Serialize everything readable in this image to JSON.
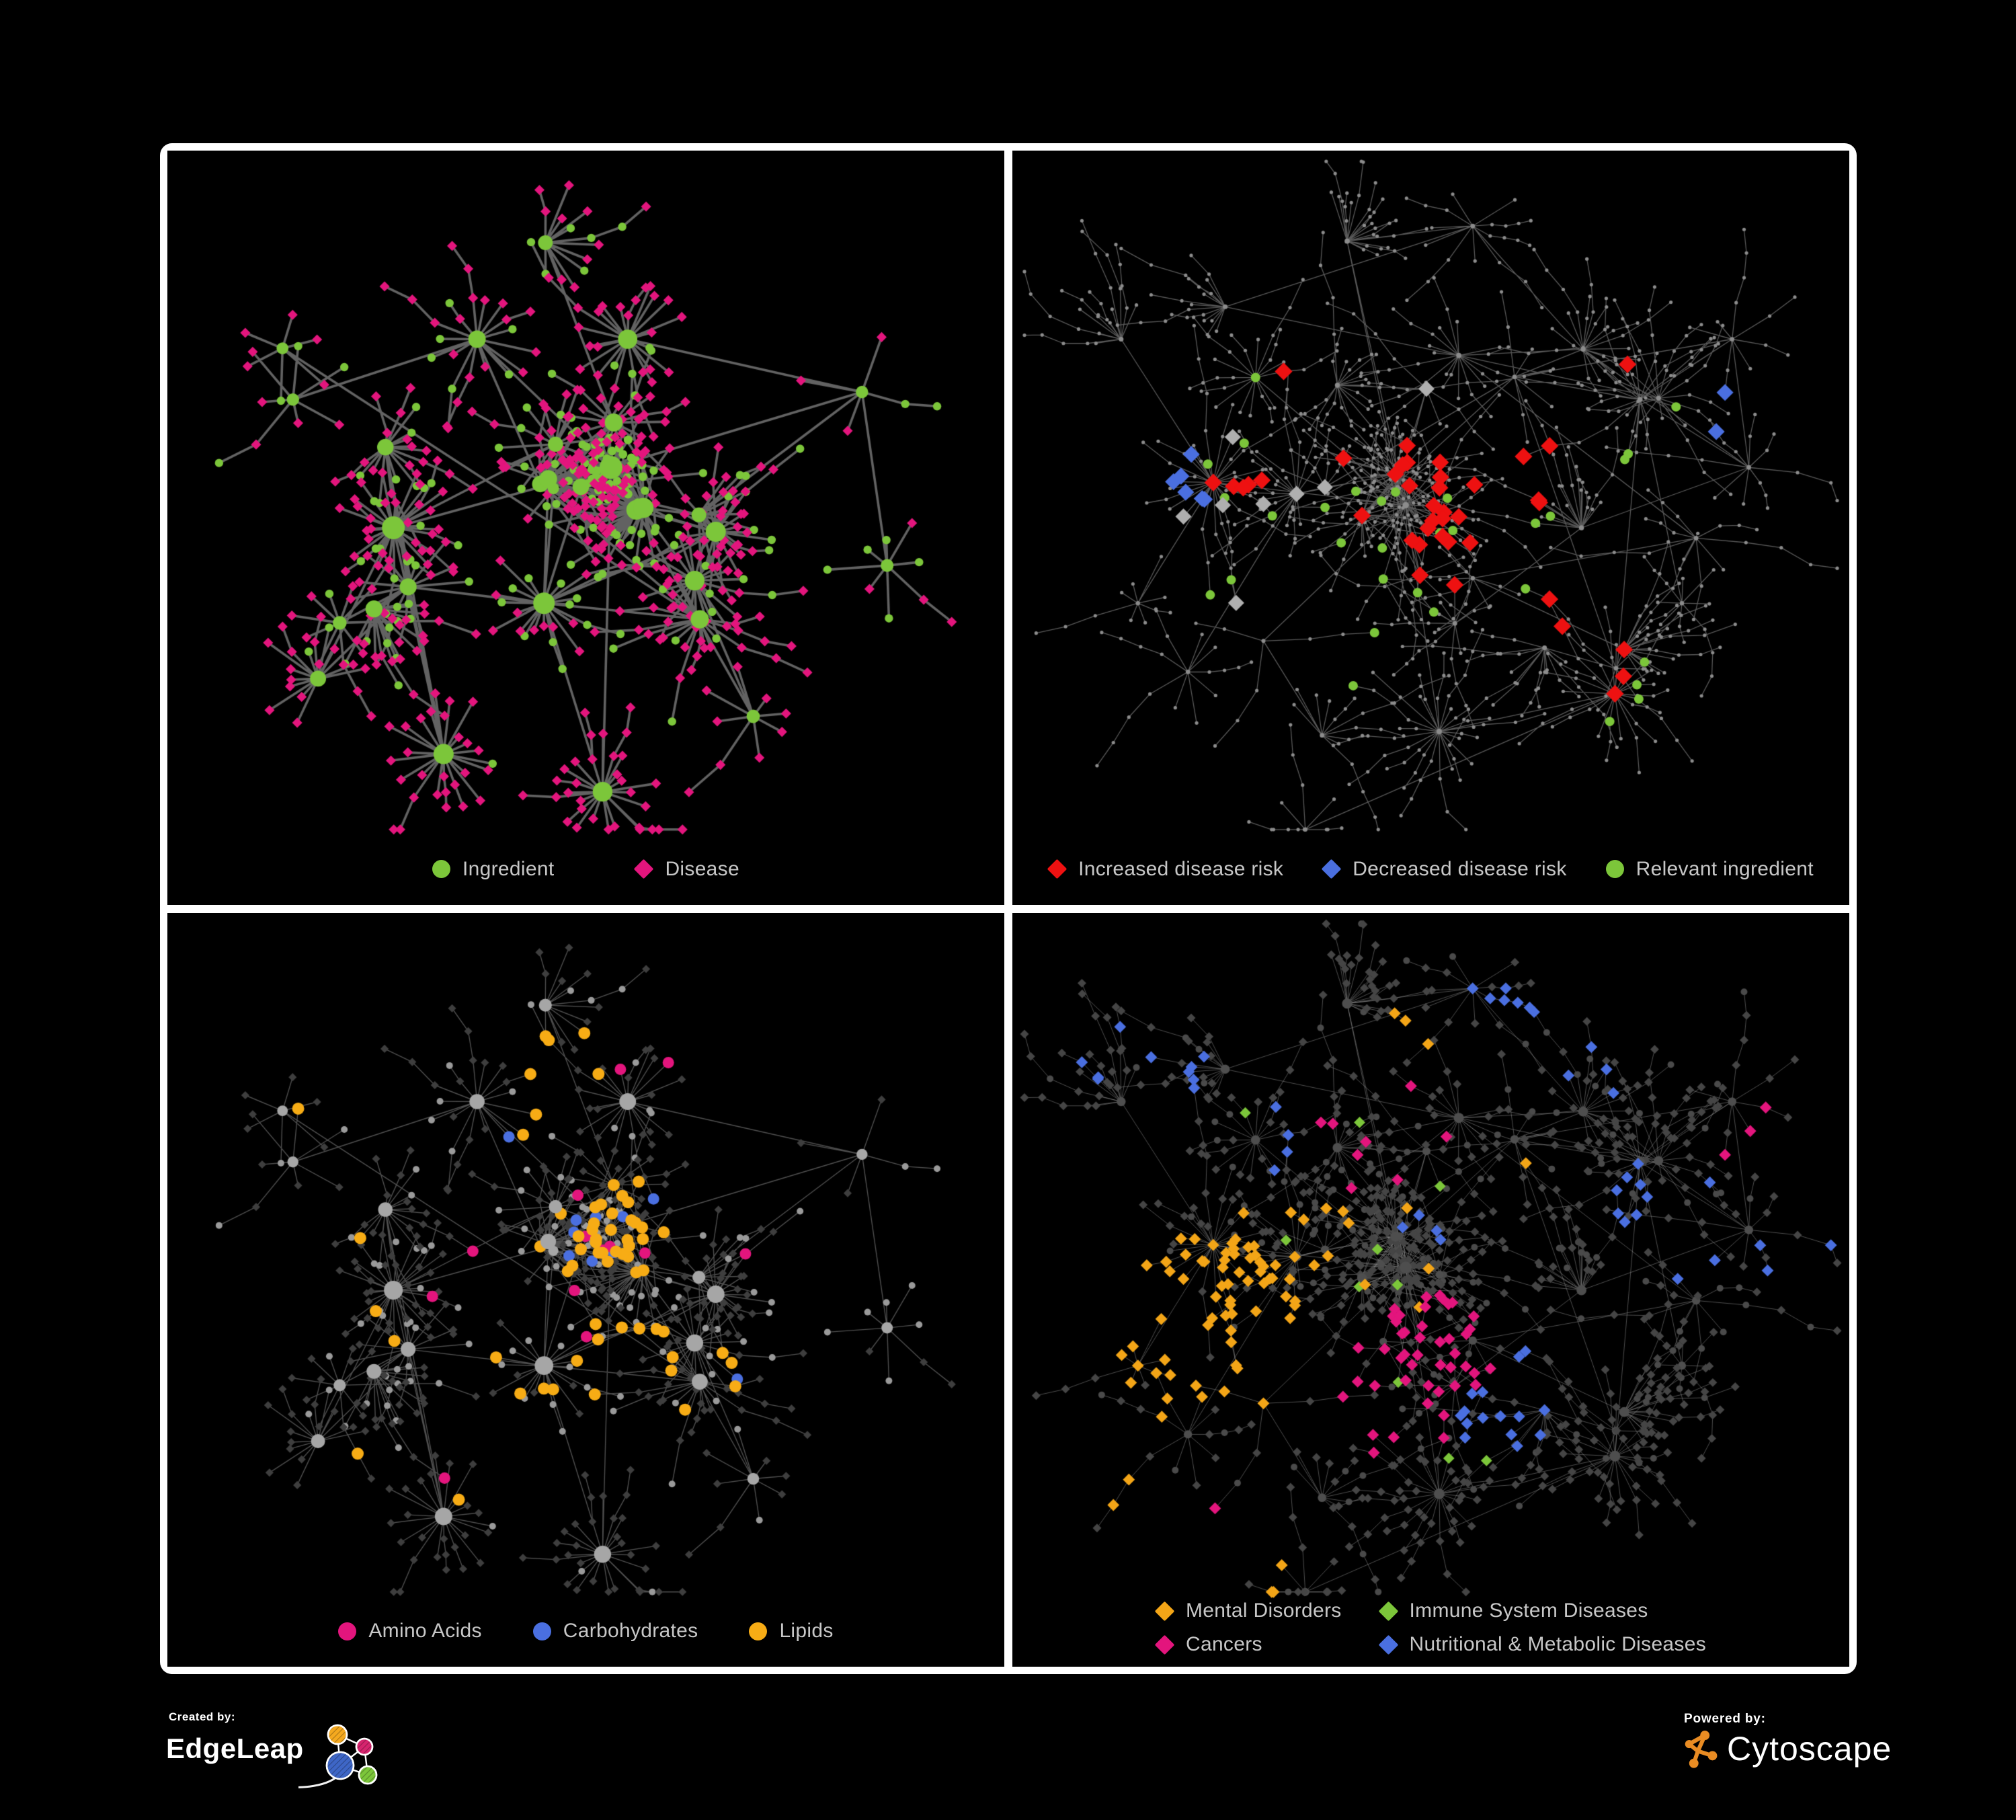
{
  "meta": {
    "background": "#000000",
    "frame_border_color": "#ffffff",
    "panel_background": "#000000",
    "legend_text_color": "#C7C7C7"
  },
  "footer": {
    "created_by_label": "Created by:",
    "created_by_name": "EdgeLeap",
    "powered_by_label": "Powered by:",
    "powered_by_name": "Cytoscape",
    "edgeleap_mark_colors": {
      "orange": "#F5A91F",
      "magenta": "#D6246E",
      "blue": "#3E66C6",
      "green": "#7CC63A"
    },
    "cytoscape_orange": "#E98C23"
  },
  "layouts": {
    "A": {
      "hubs": 30,
      "leafMin": 4,
      "leafVar": 22,
      "leafDist": 64,
      "chainP": 0.22,
      "chainLen": 2,
      "extraHubEdges": 20,
      "anchors": [
        [
          0.53,
          0.42,
          "ing-cluster"
        ],
        [
          0.27,
          0.5,
          "big"
        ],
        [
          0.52,
          0.85,
          "fan"
        ],
        [
          0.63,
          0.57,
          "fan"
        ],
        [
          0.33,
          0.8,
          "fan"
        ],
        [
          0.37,
          0.25,
          ""
        ],
        [
          0.15,
          0.33,
          "sparse"
        ],
        [
          0.83,
          0.32,
          "sparse"
        ],
        [
          0.86,
          0.55,
          "sparse"
        ],
        [
          0.7,
          0.75,
          "sparse"
        ],
        [
          0.18,
          0.7,
          ""
        ],
        [
          0.45,
          0.6,
          ""
        ],
        [
          0.55,
          0.25,
          ""
        ]
      ]
    },
    "B": {
      "hubs": 42,
      "leafMin": 3,
      "leafVar": 16,
      "leafDist": 54,
      "chainP": 0.55,
      "chainLen": 3,
      "extraHubEdges": 26,
      "anchors": [
        [
          0.24,
          0.44,
          "big"
        ],
        [
          0.47,
          0.47,
          "big"
        ],
        [
          0.51,
          0.77,
          "fan"
        ],
        [
          0.72,
          0.72,
          "fan"
        ],
        [
          0.4,
          0.12,
          ""
        ],
        [
          0.55,
          0.1,
          ""
        ],
        [
          0.75,
          0.33,
          ""
        ],
        [
          0.86,
          0.25,
          "sparse"
        ],
        [
          0.88,
          0.42,
          "sparse"
        ],
        [
          0.13,
          0.25,
          ""
        ],
        [
          0.3,
          0.65,
          ""
        ],
        [
          0.6,
          0.3,
          ""
        ],
        [
          0.68,
          0.5,
          ""
        ],
        [
          0.8,
          0.6,
          "sparse"
        ],
        [
          0.35,
          0.9,
          "sparse"
        ],
        [
          0.15,
          0.6,
          "sparse"
        ]
      ]
    }
  },
  "panels": [
    {
      "id": "node-types",
      "seed": 101,
      "layout": "A",
      "edge": {
        "color": "#6A6A6A",
        "width": 3.6,
        "alpha": 0.92
      },
      "hub": {
        "shape": "circle",
        "color": "#7CC63A",
        "rBase": 6.5,
        "rDeg": 0.34,
        "rMax": 17
      },
      "clusterLeaf": {
        "shape": "circle",
        "color": "#7CC63A",
        "r": 6.5
      },
      "leafVariants": [
        {
          "shape": "diamond",
          "color": "#E3157D",
          "r": 7.2,
          "w": 0.74
        },
        {
          "shape": "circle",
          "color": "#7CC63A",
          "r": 6.2,
          "w": 0.26
        }
      ],
      "fanSpread": 0.4,
      "highlights": [],
      "legend": {
        "rows": 1,
        "gap": 120,
        "items": [
          {
            "label": "Ingredient",
            "color": "#7CC63A",
            "shape": "circle"
          },
          {
            "label": "Disease",
            "color": "#E3157D",
            "shape": "diamond"
          }
        ]
      }
    },
    {
      "id": "disease-risk",
      "seed": 202,
      "layout": "B",
      "edge": {
        "color": "#5E5E5E",
        "width": 1.3,
        "alpha": 0.95
      },
      "hub": {
        "shape": "circle",
        "color": "#8C8C8C",
        "rBase": 2.8,
        "rDeg": 0.05,
        "rMax": 5
      },
      "clusterLeaf": {
        "shape": "circle",
        "color": "#8C8C8C",
        "r": 2.6
      },
      "leafVariants": [
        {
          "shape": "circle",
          "color": "#8C8C8C",
          "r": 2.6,
          "w": 1
        }
      ],
      "fanSpread": 0,
      "highlights": [
        {
          "color": "#EE1111",
          "shape": "diamond",
          "r": 12.5,
          "regions": [
            {
              "c": [
                0.46,
                0.5
              ],
              "rad": 0.14,
              "p": 0.3,
              "max": 20
            },
            {
              "c": [
                0.3,
                0.44
              ],
              "rad": 0.06,
              "p": 0.5,
              "max": 5
            },
            {
              "c": [
                0.6,
                0.55
              ],
              "rad": 0.1,
              "p": 0.25,
              "max": 8
            },
            {
              "c": [
                0.32,
                0.31
              ],
              "rad": 0.025,
              "p": 1,
              "max": 1
            },
            {
              "c": [
                0.63,
                0.4
              ],
              "rad": 0.03,
              "p": 1,
              "max": 2
            },
            {
              "c": [
                0.72,
                0.72
              ],
              "rad": 0.06,
              "p": 0.6,
              "max": 3
            },
            {
              "c": [
                0.75,
                0.3
              ],
              "rad": 0.03,
              "p": 1,
              "max": 1
            }
          ]
        },
        {
          "color": "#4A6FE0",
          "shape": "diamond",
          "r": 12,
          "regions": [
            {
              "c": [
                0.26,
                0.45
              ],
              "rad": 0.07,
              "p": 0.55,
              "max": 6
            },
            {
              "c": [
                0.835,
                0.345
              ],
              "rad": 0.035,
              "p": 1,
              "max": 2
            }
          ]
        },
        {
          "color": "#AFAFAF",
          "shape": "diamond",
          "r": 11.5,
          "regions": [
            {
              "c": [
                0.38,
                0.47
              ],
              "rad": 0.22,
              "p": 0.08,
              "max": 8
            }
          ]
        },
        {
          "color": "#7CC63A",
          "shape": "circle",
          "r": 7,
          "regions": [
            {
              "c": [
                0.42,
                0.48
              ],
              "rad": 0.23,
              "p": 0.16,
              "max": 24
            },
            {
              "c": [
                0.7,
                0.7
              ],
              "rad": 0.06,
              "p": 0.5,
              "max": 4
            },
            {
              "c": [
                0.74,
                0.43
              ],
              "rad": 0.03,
              "p": 1,
              "max": 2
            },
            {
              "c": [
                0.13,
                0.48
              ],
              "rad": 0.03,
              "p": 1,
              "max": 1
            },
            {
              "c": [
                0.8,
                0.36
              ],
              "rad": 0.03,
              "p": 1,
              "max": 1
            }
          ]
        }
      ],
      "legend": {
        "rows": 1,
        "gap": 58,
        "items": [
          {
            "label": "Increased disease risk",
            "color": "#EE1111",
            "shape": "diamond"
          },
          {
            "label": "Decreased disease risk",
            "color": "#4A6FE0",
            "shape": "diamond"
          },
          {
            "label": "Relevant ingredient",
            "color": "#7CC63A",
            "shape": "circle"
          }
        ]
      }
    },
    {
      "id": "nutrient-classes",
      "seed": 101,
      "layout": "A",
      "edge": {
        "color": "#909090",
        "width": 1.4,
        "alpha": 0.55
      },
      "hub": {
        "shape": "circle",
        "color": "#A6A6A6",
        "rBase": 6,
        "rDeg": 0.28,
        "rMax": 14
      },
      "clusterLeaf": {
        "shape": "circle",
        "color": "#9E9E9E",
        "r": 5.5
      },
      "leafVariants": [
        {
          "shape": "diamond",
          "color": "#3E3E3E",
          "r": 5.8,
          "w": 0.72
        },
        {
          "shape": "circle",
          "color": "#9A9A9A",
          "r": 5,
          "w": 0.28
        }
      ],
      "fanSpread": 0.3,
      "highlights": [
        {
          "color": "#F7AC15",
          "shape": "circle",
          "r": 9,
          "regions": [
            {
              "c": [
                0.545,
                0.425
              ],
              "rad": 0.075,
              "p": 0.75,
              "max": 28
            },
            {
              "c": [
                0.44,
                0.22
              ],
              "rad": 0.09,
              "p": 0.3,
              "max": 12
            },
            {
              "c": [
                0.47,
                0.55
              ],
              "rad": 0.11,
              "p": 0.2,
              "max": 12
            },
            {
              "c": [
                0.57,
                0.585
              ],
              "rad": 0.04,
              "p": 0.8,
              "max": 5
            },
            {
              "c": [
                0.7,
                0.6
              ],
              "rad": 0.05,
              "p": 0.5,
              "max": 5
            },
            {
              "c": [
                0.5,
                0.5
              ],
              "rad": 0.48,
              "p": 0.02,
              "max": 10
            }
          ]
        },
        {
          "color": "#4A6FE0",
          "shape": "circle",
          "r": 8.5,
          "regions": [
            {
              "c": [
                0.545,
                0.43
              ],
              "rad": 0.07,
              "p": 0.3,
              "max": 8
            },
            {
              "c": [
                0.29,
                0.065
              ],
              "rad": 0.02,
              "p": 1,
              "max": 1
            },
            {
              "c": [
                0.06,
                0.27
              ],
              "rad": 0.02,
              "p": 1,
              "max": 1
            },
            {
              "c": [
                0.42,
                0.31
              ],
              "rad": 0.02,
              "p": 1,
              "max": 1
            },
            {
              "c": [
                0.68,
                0.62
              ],
              "rad": 0.03,
              "p": 1,
              "max": 1
            }
          ]
        },
        {
          "color": "#E3157D",
          "shape": "circle",
          "r": 8.5,
          "regions": [
            {
              "c": [
                0.5,
                0.52
              ],
              "rad": 0.5,
              "p": 0.028,
              "max": 16
            }
          ]
        }
      ],
      "legend": {
        "rows": 1,
        "gap": 76,
        "items": [
          {
            "label": "Amino Acids",
            "color": "#E3157D",
            "shape": "circle"
          },
          {
            "label": "Carbohydrates",
            "color": "#4A6FE0",
            "shape": "circle"
          },
          {
            "label": "Lipids",
            "color": "#F7AC15",
            "shape": "circle"
          }
        ]
      }
    },
    {
      "id": "disease-classes",
      "seed": 202,
      "layout": "B",
      "edge": {
        "color": "#9C9C9C",
        "width": 1.0,
        "alpha": 0.5
      },
      "hub": {
        "shape": "circle",
        "color": "#4E4E4E",
        "rBase": 5,
        "rDeg": 0.12,
        "rMax": 9
      },
      "clusterLeaf": {
        "shape": "diamond",
        "color": "#454545",
        "r": 6
      },
      "leafVariants": [
        {
          "shape": "diamond",
          "color": "#454545",
          "r": 6.2,
          "w": 0.8
        },
        {
          "shape": "circle",
          "color": "#4A4A4A",
          "r": 5,
          "w": 0.2
        }
      ],
      "fanSpread": 0,
      "highlights": [
        {
          "color": "#F3A517",
          "shape": "diamond",
          "r": 8.5,
          "regions": [
            {
              "c": [
                0.22,
                0.55
              ],
              "rad": 0.13,
              "p": 0.8,
              "max": 90
            },
            {
              "c": [
                0.36,
                0.42
              ],
              "rad": 0.05,
              "p": 0.4,
              "max": 8
            },
            {
              "c": [
                0.3,
                0.87
              ],
              "rad": 0.05,
              "p": 0.5,
              "max": 5
            },
            {
              "c": [
                0.47,
                0.17
              ],
              "rad": 0.04,
              "p": 0.5,
              "max": 4
            },
            {
              "c": [
                0.13,
                0.78
              ],
              "rad": 0.04,
              "p": 0.6,
              "max": 4
            },
            {
              "c": [
                0.53,
                0.47
              ],
              "rad": 0.35,
              "p": 0.012,
              "max": 6
            }
          ]
        },
        {
          "color": "#E3157D",
          "shape": "diamond",
          "r": 8.5,
          "regions": [
            {
              "c": [
                0.49,
                0.62
              ],
              "rad": 0.115,
              "p": 0.5,
              "max": 45
            },
            {
              "c": [
                0.44,
                0.3
              ],
              "rad": 0.08,
              "p": 0.22,
              "max": 8
            },
            {
              "c": [
                0.88,
                0.3
              ],
              "rad": 0.05,
              "p": 0.8,
              "max": 6
            },
            {
              "c": [
                0.25,
                0.8
              ],
              "rad": 0.04,
              "p": 0.5,
              "max": 4
            },
            {
              "c": [
                0.48,
                0.93
              ],
              "rad": 0.05,
              "p": 0.4,
              "max": 4
            },
            {
              "c": [
                0.3,
                0.17
              ],
              "rad": 0.03,
              "p": 0.8,
              "max": 2
            }
          ]
        },
        {
          "color": "#4A6FE0",
          "shape": "diamond",
          "r": 8.5,
          "regions": [
            {
              "c": [
                0.58,
                0.64
              ],
              "rad": 0.075,
              "p": 0.65,
              "max": 18
            },
            {
              "c": [
                0.8,
                0.4
              ],
              "rad": 0.09,
              "p": 0.35,
              "max": 14
            },
            {
              "c": [
                0.17,
                0.16
              ],
              "rad": 0.1,
              "p": 0.3,
              "max": 10
            },
            {
              "c": [
                0.6,
                0.1
              ],
              "rad": 0.06,
              "p": 0.5,
              "max": 8
            },
            {
              "c": [
                0.93,
                0.44
              ],
              "rad": 0.05,
              "p": 0.6,
              "max": 6
            },
            {
              "c": [
                0.3,
                0.3
              ],
              "rad": 0.05,
              "p": 0.3,
              "max": 5
            },
            {
              "c": [
                0.25,
                0.9
              ],
              "rad": 0.06,
              "p": 0.3,
              "max": 4
            },
            {
              "c": [
                0.5,
                0.42
              ],
              "rad": 0.04,
              "p": 0.4,
              "max": 4
            },
            {
              "c": [
                0.7,
                0.2
              ],
              "rad": 0.05,
              "p": 0.4,
              "max": 4
            }
          ]
        },
        {
          "color": "#7CC63A",
          "shape": "diamond",
          "r": 8,
          "regions": [
            {
              "c": [
                0.45,
                0.45
              ],
              "rad": 0.3,
              "p": 0.03,
              "max": 12
            }
          ]
        }
      ],
      "legend": {
        "rows": 2,
        "gap": 56,
        "items": [
          {
            "label": "Mental Disorders",
            "color": "#F3A517",
            "shape": "diamond"
          },
          {
            "label": "Cancers",
            "color": "#E3157D",
            "shape": "diamond"
          },
          {
            "label": "Immune System Diseases",
            "color": "#7CC63A",
            "shape": "diamond"
          },
          {
            "label": "Nutritional & Metabolic Diseases",
            "color": "#4A6FE0",
            "shape": "diamond"
          }
        ]
      }
    }
  ]
}
